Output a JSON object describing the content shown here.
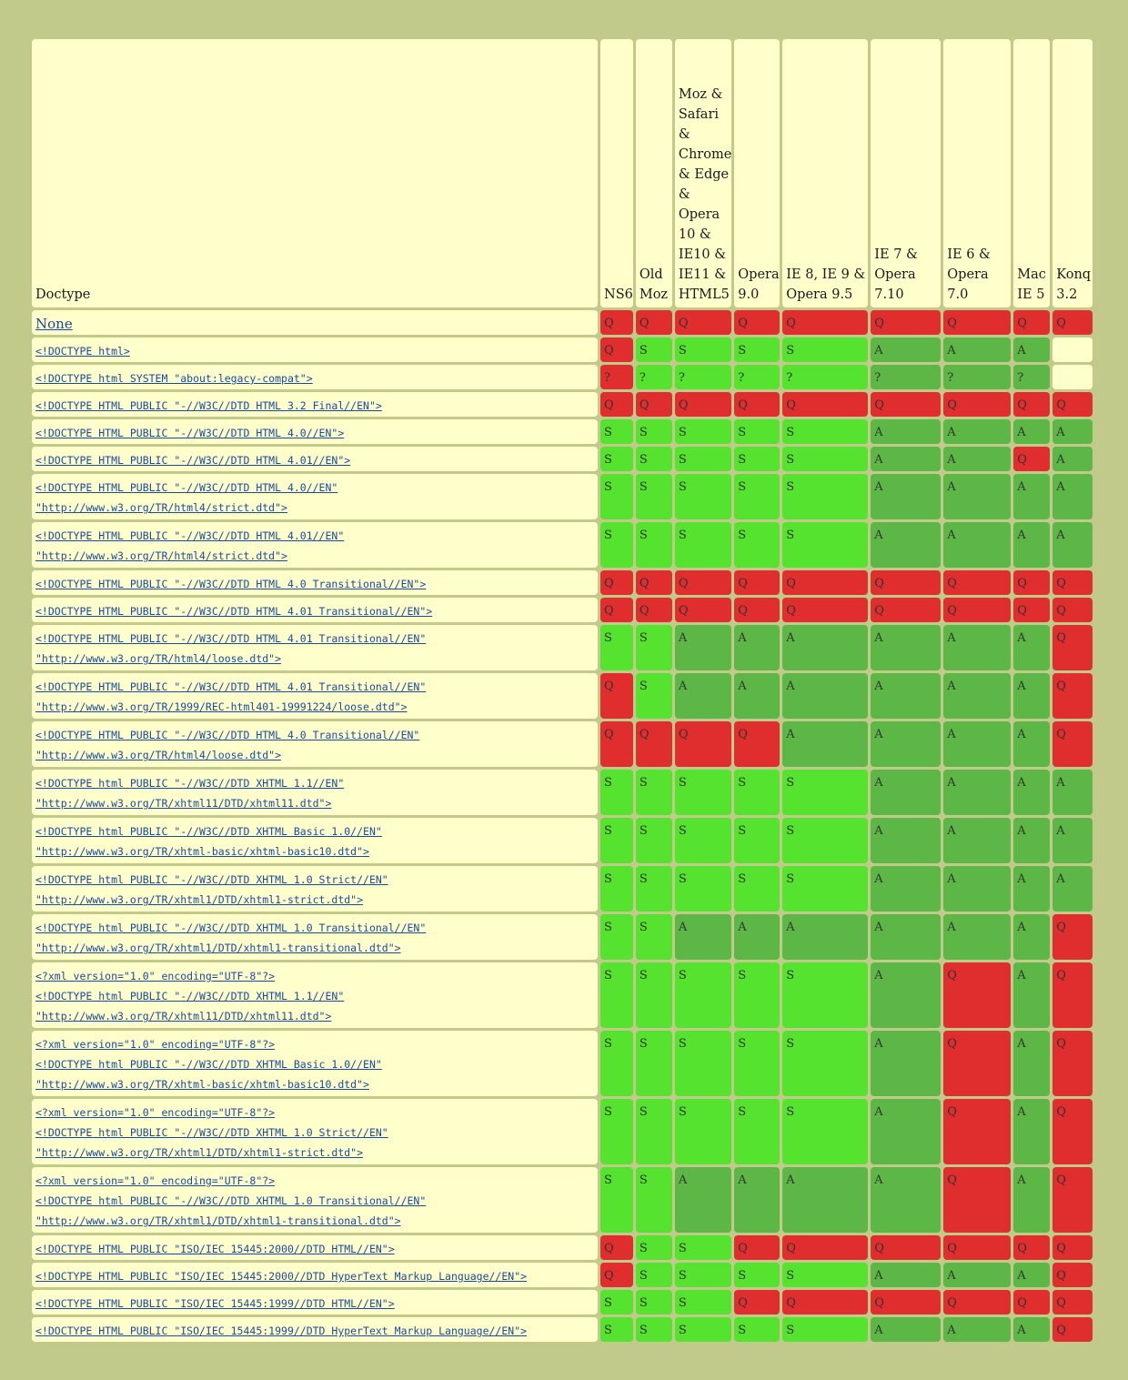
{
  "header": {
    "doctype_label": "Doctype",
    "browsers": [
      "NS6",
      "Old Moz",
      "Moz & Safari & Chrome & Edge & Opera 10 & IE10 & IE11 & HTML5",
      "Opera 9.0",
      "IE 8, IE 9 & Opera 9.5",
      "IE 7 & Opera 7.10",
      "IE 6 & Opera 7.0",
      "Mac IE 5",
      "Konq 3.2"
    ]
  },
  "rows": [
    {
      "lines": [
        "None"
      ],
      "cells": [
        "Q",
        "Q",
        "Q",
        "Q",
        "Q",
        "Q",
        "Q",
        "Q",
        "Q"
      ]
    },
    {
      "lines": [
        "<!DOCTYPE html>"
      ],
      "cells": [
        "Q",
        "S",
        "S",
        "S",
        "S",
        "A",
        "A",
        "A",
        ""
      ]
    },
    {
      "lines": [
        "<!DOCTYPE html SYSTEM \"about:legacy-compat\">"
      ],
      "cells": [
        "?",
        "?",
        "?",
        "?",
        "?",
        "?",
        "?",
        "?",
        ""
      ]
    },
    {
      "lines": [
        "<!DOCTYPE HTML PUBLIC \"-//W3C//DTD HTML 3.2 Final//EN\">"
      ],
      "cells": [
        "Q",
        "Q",
        "Q",
        "Q",
        "Q",
        "Q",
        "Q",
        "Q",
        "Q"
      ]
    },
    {
      "lines": [
        "<!DOCTYPE HTML PUBLIC \"-//W3C//DTD HTML 4.0//EN\">"
      ],
      "cells": [
        "S",
        "S",
        "S",
        "S",
        "S",
        "A",
        "A",
        "A",
        "A"
      ]
    },
    {
      "lines": [
        "<!DOCTYPE HTML PUBLIC \"-//W3C//DTD HTML 4.01//EN\">"
      ],
      "cells": [
        "S",
        "S",
        "S",
        "S",
        "S",
        "A",
        "A",
        "Q",
        "A"
      ]
    },
    {
      "lines": [
        "<!DOCTYPE HTML PUBLIC \"-//W3C//DTD HTML 4.0//EN\"",
        "\"http://www.w3.org/TR/html4/strict.dtd\">"
      ],
      "cells": [
        "S",
        "S",
        "S",
        "S",
        "S",
        "A",
        "A",
        "A",
        "A"
      ]
    },
    {
      "lines": [
        "<!DOCTYPE HTML PUBLIC \"-//W3C//DTD HTML 4.01//EN\"",
        "\"http://www.w3.org/TR/html4/strict.dtd\">"
      ],
      "cells": [
        "S",
        "S",
        "S",
        "S",
        "S",
        "A",
        "A",
        "A",
        "A"
      ]
    },
    {
      "lines": [
        "<!DOCTYPE HTML PUBLIC \"-//W3C//DTD HTML 4.0 Transitional//EN\">"
      ],
      "cells": [
        "Q",
        "Q",
        "Q",
        "Q",
        "Q",
        "Q",
        "Q",
        "Q",
        "Q"
      ]
    },
    {
      "lines": [
        "<!DOCTYPE HTML PUBLIC \"-//W3C//DTD HTML 4.01 Transitional//EN\">"
      ],
      "cells": [
        "Q",
        "Q",
        "Q",
        "Q",
        "Q",
        "Q",
        "Q",
        "Q",
        "Q"
      ]
    },
    {
      "lines": [
        "<!DOCTYPE HTML PUBLIC \"-//W3C//DTD HTML 4.01 Transitional//EN\"",
        "\"http://www.w3.org/TR/html4/loose.dtd\">"
      ],
      "cells": [
        "S",
        "S",
        "A",
        "A",
        "A",
        "A",
        "A",
        "A",
        "Q"
      ]
    },
    {
      "lines": [
        "<!DOCTYPE HTML PUBLIC \"-//W3C//DTD HTML 4.01 Transitional//EN\"",
        "\"http://www.w3.org/TR/1999/REC-html401-19991224/loose.dtd\">"
      ],
      "cells": [
        "Q",
        "S",
        "A",
        "A",
        "A",
        "A",
        "A",
        "A",
        "Q"
      ]
    },
    {
      "lines": [
        "<!DOCTYPE HTML PUBLIC \"-//W3C//DTD HTML 4.0 Transitional//EN\"",
        "\"http://www.w3.org/TR/html4/loose.dtd\">"
      ],
      "cells": [
        "Q",
        "Q",
        "Q",
        "Q",
        "A",
        "A",
        "A",
        "A",
        "Q"
      ]
    },
    {
      "lines": [
        "<!DOCTYPE html PUBLIC \"-//W3C//DTD XHTML 1.1//EN\"",
        "\"http://www.w3.org/TR/xhtml11/DTD/xhtml11.dtd\">"
      ],
      "cells": [
        "S",
        "S",
        "S",
        "S",
        "S",
        "A",
        "A",
        "A",
        "A"
      ]
    },
    {
      "lines": [
        "<!DOCTYPE html PUBLIC \"-//W3C//DTD XHTML Basic 1.0//EN\"",
        "\"http://www.w3.org/TR/xhtml-basic/xhtml-basic10.dtd\">"
      ],
      "cells": [
        "S",
        "S",
        "S",
        "S",
        "S",
        "A",
        "A",
        "A",
        "A"
      ]
    },
    {
      "lines": [
        "<!DOCTYPE html PUBLIC \"-//W3C//DTD XHTML 1.0 Strict//EN\"",
        "\"http://www.w3.org/TR/xhtml1/DTD/xhtml1-strict.dtd\">"
      ],
      "cells": [
        "S",
        "S",
        "S",
        "S",
        "S",
        "A",
        "A",
        "A",
        "A"
      ]
    },
    {
      "lines": [
        "<!DOCTYPE html PUBLIC \"-//W3C//DTD XHTML 1.0 Transitional//EN\"",
        "\"http://www.w3.org/TR/xhtml1/DTD/xhtml1-transitional.dtd\">"
      ],
      "cells": [
        "S",
        "S",
        "A",
        "A",
        "A",
        "A",
        "A",
        "A",
        "Q"
      ]
    },
    {
      "lines": [
        "<?xml version=\"1.0\" encoding=\"UTF-8\"?>",
        "<!DOCTYPE html PUBLIC \"-//W3C//DTD XHTML 1.1//EN\"",
        "\"http://www.w3.org/TR/xhtml11/DTD/xhtml11.dtd\">"
      ],
      "cells": [
        "S",
        "S",
        "S",
        "S",
        "S",
        "A",
        "Q",
        "A",
        "Q"
      ]
    },
    {
      "lines": [
        "<?xml version=\"1.0\" encoding=\"UTF-8\"?>",
        "<!DOCTYPE html PUBLIC \"-//W3C//DTD XHTML Basic 1.0//EN\"",
        "\"http://www.w3.org/TR/xhtml-basic/xhtml-basic10.dtd\">"
      ],
      "cells": [
        "S",
        "S",
        "S",
        "S",
        "S",
        "A",
        "Q",
        "A",
        "Q"
      ]
    },
    {
      "lines": [
        "<?xml version=\"1.0\" encoding=\"UTF-8\"?>",
        "<!DOCTYPE html PUBLIC \"-//W3C//DTD XHTML 1.0 Strict//EN\"",
        "\"http://www.w3.org/TR/xhtml1/DTD/xhtml1-strict.dtd\">"
      ],
      "cells": [
        "S",
        "S",
        "S",
        "S",
        "S",
        "A",
        "Q",
        "A",
        "Q"
      ]
    },
    {
      "lines": [
        "<?xml version=\"1.0\" encoding=\"UTF-8\"?>",
        "<!DOCTYPE html PUBLIC \"-//W3C//DTD XHTML 1.0 Transitional//EN\"",
        "\"http://www.w3.org/TR/xhtml1/DTD/xhtml1-transitional.dtd\">"
      ],
      "cells": [
        "S",
        "S",
        "A",
        "A",
        "A",
        "A",
        "Q",
        "A",
        "Q"
      ]
    },
    {
      "lines": [
        "<!DOCTYPE HTML PUBLIC \"ISO/IEC 15445:2000//DTD HTML//EN\">"
      ],
      "cells": [
        "Q",
        "S",
        "S",
        "Q",
        "Q",
        "Q",
        "Q",
        "Q",
        "Q"
      ]
    },
    {
      "lines": [
        "<!DOCTYPE HTML PUBLIC \"ISO/IEC 15445:2000//DTD HyperText Markup Language//EN\">"
      ],
      "cells": [
        "Q",
        "S",
        "S",
        "S",
        "S",
        "A",
        "A",
        "A",
        "Q"
      ]
    },
    {
      "lines": [
        "<!DOCTYPE HTML PUBLIC \"ISO/IEC 15445:1999//DTD HTML//EN\">"
      ],
      "cells": [
        "S",
        "S",
        "S",
        "Q",
        "Q",
        "Q",
        "Q",
        "Q",
        "Q"
      ]
    },
    {
      "lines": [
        "<!DOCTYPE HTML PUBLIC \"ISO/IEC 15445:1999//DTD HyperText Markup Language//EN\">"
      ],
      "cells": [
        "S",
        "S",
        "S",
        "S",
        "S",
        "A",
        "A",
        "A",
        "Q"
      ]
    }
  ],
  "colors": {
    "page_background": "#c1ca8a",
    "header_cell": "#ffffcc",
    "quirks": "#e02d2d",
    "standards": "#55e32f",
    "almost_standards": "#5db746",
    "link": "#1a4a9a"
  }
}
